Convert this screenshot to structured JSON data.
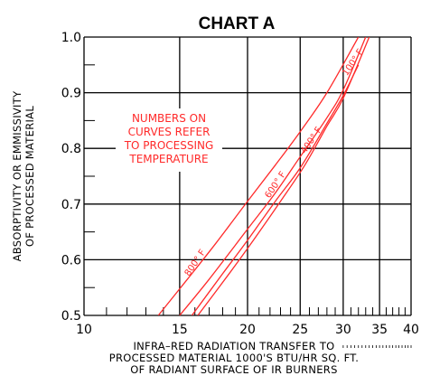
{
  "chart_data": {
    "type": "line",
    "title": "CHART A",
    "xlabel": [
      "INFRA–RED RADIATION TRANSFER TO",
      "PROCESSED MATERIAL 1000'S BTU/HR SQ. FT.",
      "OF RADIANT SURFACE OF IR BURNERS"
    ],
    "ylabel": [
      "ABSORPTIVITY OR EMMISSIVITY",
      "OF PROCESSED MATERIAL"
    ],
    "x_scale": "log",
    "xlim": [
      10,
      40
    ],
    "ylim": [
      0.5,
      1.0
    ],
    "x_ticks": [
      "10",
      "15",
      "20",
      "25",
      "30",
      "35",
      "40"
    ],
    "y_ticks": [
      "0.5",
      "0.6",
      "0.7",
      "0.8",
      "0.9",
      "1.0"
    ],
    "annotation": [
      "NUMBERS ON",
      "CURVES REFER",
      "TO PROCESSING",
      "TEMPERATURE"
    ],
    "series": [
      {
        "name": "800° F",
        "x": [
          13.7,
          15.5,
          17.5,
          20.0,
          22.5,
          25.0,
          28.0,
          32.0
        ],
        "y": [
          0.5,
          0.565,
          0.63,
          0.705,
          0.77,
          0.83,
          0.9,
          1.0
        ]
      },
      {
        "name": "600° F",
        "x": [
          15.0,
          17.0,
          20.0,
          22.5,
          25.0,
          28.0,
          30.0,
          33.0
        ],
        "y": [
          0.5,
          0.565,
          0.655,
          0.72,
          0.785,
          0.855,
          0.905,
          1.0
        ]
      },
      {
        "name": "400° F",
        "x": [
          15.8,
          18.0,
          20.0,
          22.5,
          25.0,
          28.0,
          30.0,
          32.0
        ],
        "y": [
          0.5,
          0.575,
          0.635,
          0.705,
          0.765,
          0.845,
          0.895,
          0.95
        ]
      },
      {
        "name": "100° F",
        "x": [
          16.2,
          18.5,
          20.5,
          23.0,
          25.5,
          28.0,
          30.0,
          33.5
        ],
        "y": [
          0.5,
          0.575,
          0.635,
          0.705,
          0.77,
          0.84,
          0.89,
          1.0
        ]
      }
    ],
    "curve_color": "#ff2a2a",
    "grid": true
  }
}
